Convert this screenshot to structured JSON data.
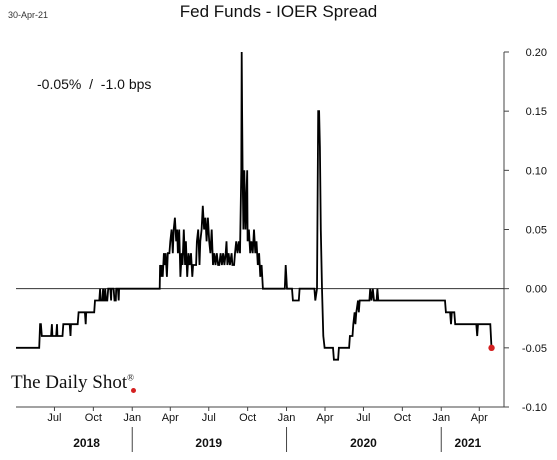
{
  "header": {
    "date_stamp": "30-Apr-21",
    "title": "Fed Funds - IOER Spread"
  },
  "annotation": {
    "text": "-0.05%  /  -1.0 bps"
  },
  "brand": {
    "name": "The Daily Shot",
    "mark": "®",
    "accent_color": "#d42020"
  },
  "chart_data": {
    "type": "line",
    "title": "Fed Funds - IOER Spread",
    "xlabel": "",
    "ylabel": "",
    "xlim": [
      "2018-04-01",
      "2021-05-20"
    ],
    "ylim": [
      -0.1,
      0.2
    ],
    "y_ticks": [
      -0.1,
      -0.05,
      0.0,
      0.05,
      0.1,
      0.15,
      0.2
    ],
    "y_tick_labels": [
      "-0.10",
      "-0.05",
      "0.00",
      "0.05",
      "0.10",
      "0.15",
      "0.20"
    ],
    "y_axis_position": "right",
    "x_tick_labels": [
      {
        "date": "2018-07-01",
        "label": "Jul"
      },
      {
        "date": "2018-10-01",
        "label": "Oct"
      },
      {
        "date": "2019-01-01",
        "label": "Jan"
      },
      {
        "date": "2019-04-01",
        "label": "Apr"
      },
      {
        "date": "2019-07-01",
        "label": "Jul"
      },
      {
        "date": "2019-10-01",
        "label": "Oct"
      },
      {
        "date": "2020-01-01",
        "label": "Jan"
      },
      {
        "date": "2020-04-01",
        "label": "Apr"
      },
      {
        "date": "2020-07-01",
        "label": "Jul"
      },
      {
        "date": "2020-10-01",
        "label": "Oct"
      },
      {
        "date": "2021-01-01",
        "label": "Jan"
      },
      {
        "date": "2021-04-01",
        "label": "Apr"
      }
    ],
    "year_labels": [
      {
        "label": "2018",
        "center": "2018-09-15"
      },
      {
        "label": "2019",
        "center": "2019-07-01"
      },
      {
        "label": "2020",
        "center": "2020-07-01"
      },
      {
        "label": "2021",
        "center": "2021-03-05"
      }
    ],
    "year_separators": [
      "2019-01-01",
      "2020-01-01",
      "2021-01-01"
    ],
    "zero_line": true,
    "grid": false,
    "legend": "none",
    "series": [
      {
        "color": "#000000",
        "last_point_color": "#d42020",
        "points": [
          [
            "2018-04-01",
            -0.05
          ],
          [
            "2018-05-26",
            -0.05
          ],
          [
            "2018-05-28",
            -0.03
          ],
          [
            "2018-05-30",
            -0.03
          ],
          [
            "2018-06-01",
            -0.04
          ],
          [
            "2018-06-23",
            -0.04
          ],
          [
            "2018-06-25",
            -0.03
          ],
          [
            "2018-06-26",
            -0.04
          ],
          [
            "2018-07-05",
            -0.04
          ],
          [
            "2018-07-07",
            -0.03
          ],
          [
            "2018-07-08",
            -0.04
          ],
          [
            "2018-07-20",
            -0.04
          ],
          [
            "2018-07-22",
            -0.03
          ],
          [
            "2018-08-06",
            -0.03
          ],
          [
            "2018-08-08",
            -0.04
          ],
          [
            "2018-08-09",
            -0.03
          ],
          [
            "2018-08-25",
            -0.03
          ],
          [
            "2018-08-27",
            -0.02
          ],
          [
            "2018-09-11",
            -0.02
          ],
          [
            "2018-09-13",
            -0.03
          ],
          [
            "2018-09-14",
            -0.02
          ],
          [
            "2018-10-03",
            -0.02
          ],
          [
            "2018-10-05",
            -0.01
          ],
          [
            "2018-10-15",
            -0.01
          ],
          [
            "2018-10-17",
            0.0
          ],
          [
            "2018-10-18",
            -0.01
          ],
          [
            "2018-10-22",
            -0.01
          ],
          [
            "2018-10-24",
            0.0
          ],
          [
            "2018-10-25",
            -0.01
          ],
          [
            "2018-10-27",
            -0.01
          ],
          [
            "2018-10-29",
            0.0
          ],
          [
            "2018-10-31",
            -0.01
          ],
          [
            "2018-11-03",
            -0.01
          ],
          [
            "2018-11-05",
            0.0
          ],
          [
            "2018-11-10",
            0.0
          ],
          [
            "2018-11-12",
            -0.01
          ],
          [
            "2018-11-13",
            0.0
          ],
          [
            "2018-11-18",
            0.0
          ],
          [
            "2018-11-20",
            -0.01
          ],
          [
            "2018-11-23",
            -0.01
          ],
          [
            "2018-11-24",
            0.0
          ],
          [
            "2018-11-28",
            0.0
          ],
          [
            "2018-11-30",
            -0.01
          ],
          [
            "2018-12-01",
            0.0
          ],
          [
            "2019-03-07",
            0.0
          ],
          [
            "2019-03-08",
            0.02
          ],
          [
            "2019-03-10",
            0.01
          ],
          [
            "2019-03-12",
            0.02
          ],
          [
            "2019-03-14",
            0.01
          ],
          [
            "2019-03-17",
            0.03
          ],
          [
            "2019-03-19",
            0.02
          ],
          [
            "2019-03-21",
            0.03
          ],
          [
            "2019-03-24",
            0.01
          ],
          [
            "2019-03-26",
            0.03
          ],
          [
            "2019-03-30",
            0.03
          ],
          [
            "2019-04-01",
            0.04
          ],
          [
            "2019-04-04",
            0.05
          ],
          [
            "2019-04-07",
            0.03
          ],
          [
            "2019-04-09",
            0.05
          ],
          [
            "2019-04-12",
            0.06
          ],
          [
            "2019-04-15",
            0.04
          ],
          [
            "2019-04-17",
            0.05
          ],
          [
            "2019-04-19",
            0.03
          ],
          [
            "2019-04-22",
            0.05
          ],
          [
            "2019-04-25",
            0.01
          ],
          [
            "2019-04-28",
            0.03
          ],
          [
            "2019-04-30",
            0.02
          ],
          [
            "2019-05-03",
            0.05
          ],
          [
            "2019-05-06",
            0.02
          ],
          [
            "2019-05-08",
            0.04
          ],
          [
            "2019-05-11",
            0.01
          ],
          [
            "2019-05-14",
            0.03
          ],
          [
            "2019-05-17",
            0.02
          ],
          [
            "2019-05-20",
            0.03
          ],
          [
            "2019-05-23",
            0.01
          ],
          [
            "2019-05-25",
            0.02
          ],
          [
            "2019-06-01",
            0.02
          ],
          [
            "2019-06-03",
            0.04
          ],
          [
            "2019-06-06",
            0.05
          ],
          [
            "2019-06-09",
            0.02
          ],
          [
            "2019-06-11",
            0.04
          ],
          [
            "2019-06-14",
            0.05
          ],
          [
            "2019-06-17",
            0.07
          ],
          [
            "2019-06-20",
            0.05
          ],
          [
            "2019-06-23",
            0.06
          ],
          [
            "2019-06-26",
            0.04
          ],
          [
            "2019-06-29",
            0.06
          ],
          [
            "2019-07-02",
            0.04
          ],
          [
            "2019-07-05",
            0.03
          ],
          [
            "2019-07-08",
            0.05
          ],
          [
            "2019-07-11",
            0.02
          ],
          [
            "2019-07-14",
            0.03
          ],
          [
            "2019-07-17",
            0.02
          ],
          [
            "2019-07-20",
            0.03
          ],
          [
            "2019-07-23",
            0.02
          ],
          [
            "2019-07-26",
            0.02
          ],
          [
            "2019-07-29",
            0.03
          ],
          [
            "2019-08-01",
            0.02
          ],
          [
            "2019-08-04",
            0.03
          ],
          [
            "2019-08-07",
            0.02
          ],
          [
            "2019-08-10",
            0.03
          ],
          [
            "2019-08-12",
            0.04
          ],
          [
            "2019-08-14",
            0.02
          ],
          [
            "2019-08-17",
            0.03
          ],
          [
            "2019-08-20",
            0.02
          ],
          [
            "2019-08-24",
            0.03
          ],
          [
            "2019-08-26",
            0.02
          ],
          [
            "2019-08-30",
            0.02
          ],
          [
            "2019-09-01",
            0.03
          ],
          [
            "2019-09-04",
            0.04
          ],
          [
            "2019-09-07",
            0.03
          ],
          [
            "2019-09-10",
            0.04
          ],
          [
            "2019-09-13",
            0.03
          ],
          [
            "2019-09-16",
            0.1
          ],
          [
            "2019-09-17",
            0.2
          ],
          [
            "2019-09-18",
            0.15
          ],
          [
            "2019-09-19",
            0.1
          ],
          [
            "2019-09-21",
            0.05
          ],
          [
            "2019-09-23",
            0.1
          ],
          [
            "2019-09-26",
            0.05
          ],
          [
            "2019-09-30",
            0.1
          ],
          [
            "2019-10-01",
            0.04
          ],
          [
            "2019-10-04",
            0.05
          ],
          [
            "2019-10-07",
            0.03
          ],
          [
            "2019-10-10",
            0.04
          ],
          [
            "2019-10-13",
            0.03
          ],
          [
            "2019-10-16",
            0.05
          ],
          [
            "2019-10-19",
            0.03
          ],
          [
            "2019-10-22",
            0.04
          ],
          [
            "2019-10-25",
            0.02
          ],
          [
            "2019-10-28",
            0.03
          ],
          [
            "2019-10-31",
            0.01
          ],
          [
            "2019-11-03",
            0.02
          ],
          [
            "2019-11-06",
            0.0
          ],
          [
            "2019-12-28",
            0.0
          ],
          [
            "2019-12-30",
            0.02
          ],
          [
            "2020-01-02",
            0.0
          ],
          [
            "2020-01-14",
            0.0
          ],
          [
            "2020-01-16",
            -0.01
          ],
          [
            "2020-01-30",
            -0.01
          ],
          [
            "2020-02-01",
            0.0
          ],
          [
            "2020-03-07",
            0.0
          ],
          [
            "2020-03-09",
            -0.01
          ],
          [
            "2020-03-13",
            0.0
          ],
          [
            "2020-03-16",
            0.15
          ],
          [
            "2020-03-18",
            0.15
          ],
          [
            "2020-03-20",
            0.12
          ],
          [
            "2020-03-22",
            0.05
          ],
          [
            "2020-03-25",
            0.0
          ],
          [
            "2020-03-28",
            -0.04
          ],
          [
            "2020-03-31",
            -0.05
          ],
          [
            "2020-04-20",
            -0.05
          ],
          [
            "2020-04-22",
            -0.06
          ],
          [
            "2020-05-02",
            -0.06
          ],
          [
            "2020-05-04",
            -0.05
          ],
          [
            "2020-05-28",
            -0.05
          ],
          [
            "2020-05-30",
            -0.04
          ],
          [
            "2020-06-05",
            -0.04
          ],
          [
            "2020-06-07",
            -0.03
          ],
          [
            "2020-06-10",
            -0.02
          ],
          [
            "2020-06-12",
            -0.03
          ],
          [
            "2020-06-14",
            -0.02
          ],
          [
            "2020-06-18",
            -0.01
          ],
          [
            "2020-06-20",
            -0.02
          ],
          [
            "2020-06-22",
            -0.01
          ],
          [
            "2020-07-15",
            -0.01
          ],
          [
            "2020-07-17",
            0.0
          ],
          [
            "2020-07-20",
            -0.01
          ],
          [
            "2020-07-23",
            0.0
          ],
          [
            "2020-07-26",
            -0.01
          ],
          [
            "2020-08-01",
            -0.01
          ],
          [
            "2020-08-03",
            0.0
          ],
          [
            "2020-08-05",
            -0.01
          ],
          [
            "2021-01-10",
            -0.01
          ],
          [
            "2021-01-12",
            -0.02
          ],
          [
            "2021-01-22",
            -0.02
          ],
          [
            "2021-01-24",
            -0.03
          ],
          [
            "2021-01-26",
            -0.02
          ],
          [
            "2021-02-01",
            -0.02
          ],
          [
            "2021-02-03",
            -0.03
          ],
          [
            "2021-03-25",
            -0.03
          ],
          [
            "2021-03-27",
            -0.04
          ],
          [
            "2021-03-29",
            -0.03
          ],
          [
            "2021-04-27",
            -0.03
          ],
          [
            "2021-04-30",
            -0.05
          ]
        ]
      }
    ]
  }
}
